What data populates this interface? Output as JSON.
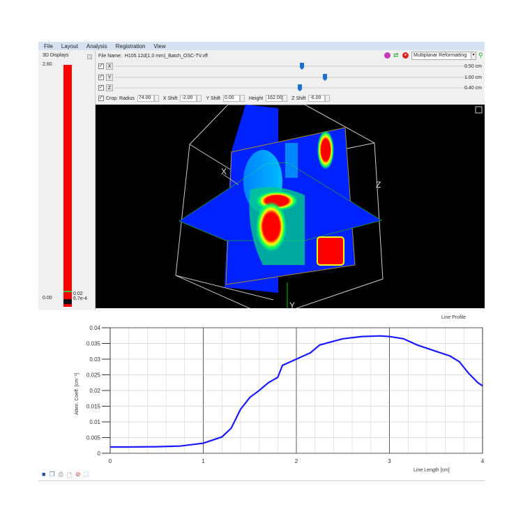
{
  "menu": [
    "File",
    "Layout",
    "Analysis",
    "Registration",
    "View"
  ],
  "left_panel": {
    "title": "3D Displays",
    "max": "2.60",
    "min": "0.00",
    "level1": "0.02",
    "level2": "6.7e-4",
    "bar_color": "#ff0000"
  },
  "file": {
    "label": "File Name:",
    "name": "H105.12d(1.0 mm)_Batch_OSC-TV.vff"
  },
  "mode_select": "Multiplanar Reformatting",
  "sliders": [
    {
      "axis": "X",
      "checked": true,
      "value": "0.50 cm",
      "fraction": 0.53
    },
    {
      "axis": "Y",
      "checked": true,
      "value": "1.60 cm",
      "fraction": 0.6
    },
    {
      "axis": "Z",
      "checked": true,
      "value": "0.40 cm",
      "fraction": 0.52
    }
  ],
  "crop": {
    "label": "Crop: Radius",
    "checked": true,
    "radius": "74.00",
    "xshift_label": "X Shift",
    "xshift": "-2.00",
    "yshift_label": "Y Shift",
    "yshift": "0.00",
    "height_label": "Height",
    "height": "162.00",
    "zshift_label": "Z Shift",
    "zshift": "-6.00"
  },
  "view_axes": {
    "x": "X",
    "y": "Y",
    "z": "Z"
  },
  "toolbar_icons": [
    "save-icon",
    "copy-icon",
    "print-icon",
    "print-preview-icon",
    "reset-icon",
    "fit-icon"
  ],
  "chart_data": {
    "type": "line",
    "title": "Line Profile",
    "xlabel": "Line Length [cm]",
    "ylabel": "Atten. Coeff. [cm⁻¹]",
    "xlim": [
      0,
      4
    ],
    "ylim": [
      0,
      0.04
    ],
    "xticks": [
      "0",
      "1",
      "2",
      "3",
      "4"
    ],
    "yticks": [
      "0",
      "0.005",
      "0.01",
      "0.015",
      "0.02",
      "0.025",
      "0.03",
      "0.035",
      "0.04"
    ],
    "grid": true,
    "color": "#1a1aff",
    "x": [
      0,
      0.2,
      0.5,
      0.75,
      1.0,
      1.2,
      1.3,
      1.4,
      1.5,
      1.6,
      1.7,
      1.8,
      1.85,
      2.0,
      2.15,
      2.25,
      2.4,
      2.5,
      2.7,
      2.9,
      3.0,
      3.15,
      3.3,
      3.5,
      3.65,
      3.75,
      3.85,
      3.95,
      4.0
    ],
    "y": [
      0.002,
      0.002,
      0.0021,
      0.0023,
      0.0032,
      0.0052,
      0.008,
      0.014,
      0.0178,
      0.02,
      0.0225,
      0.0242,
      0.028,
      0.03,
      0.032,
      0.0345,
      0.0357,
      0.0365,
      0.0372,
      0.0374,
      0.0372,
      0.0365,
      0.0345,
      0.0325,
      0.031,
      0.0292,
      0.0255,
      0.0225,
      0.0215
    ]
  }
}
